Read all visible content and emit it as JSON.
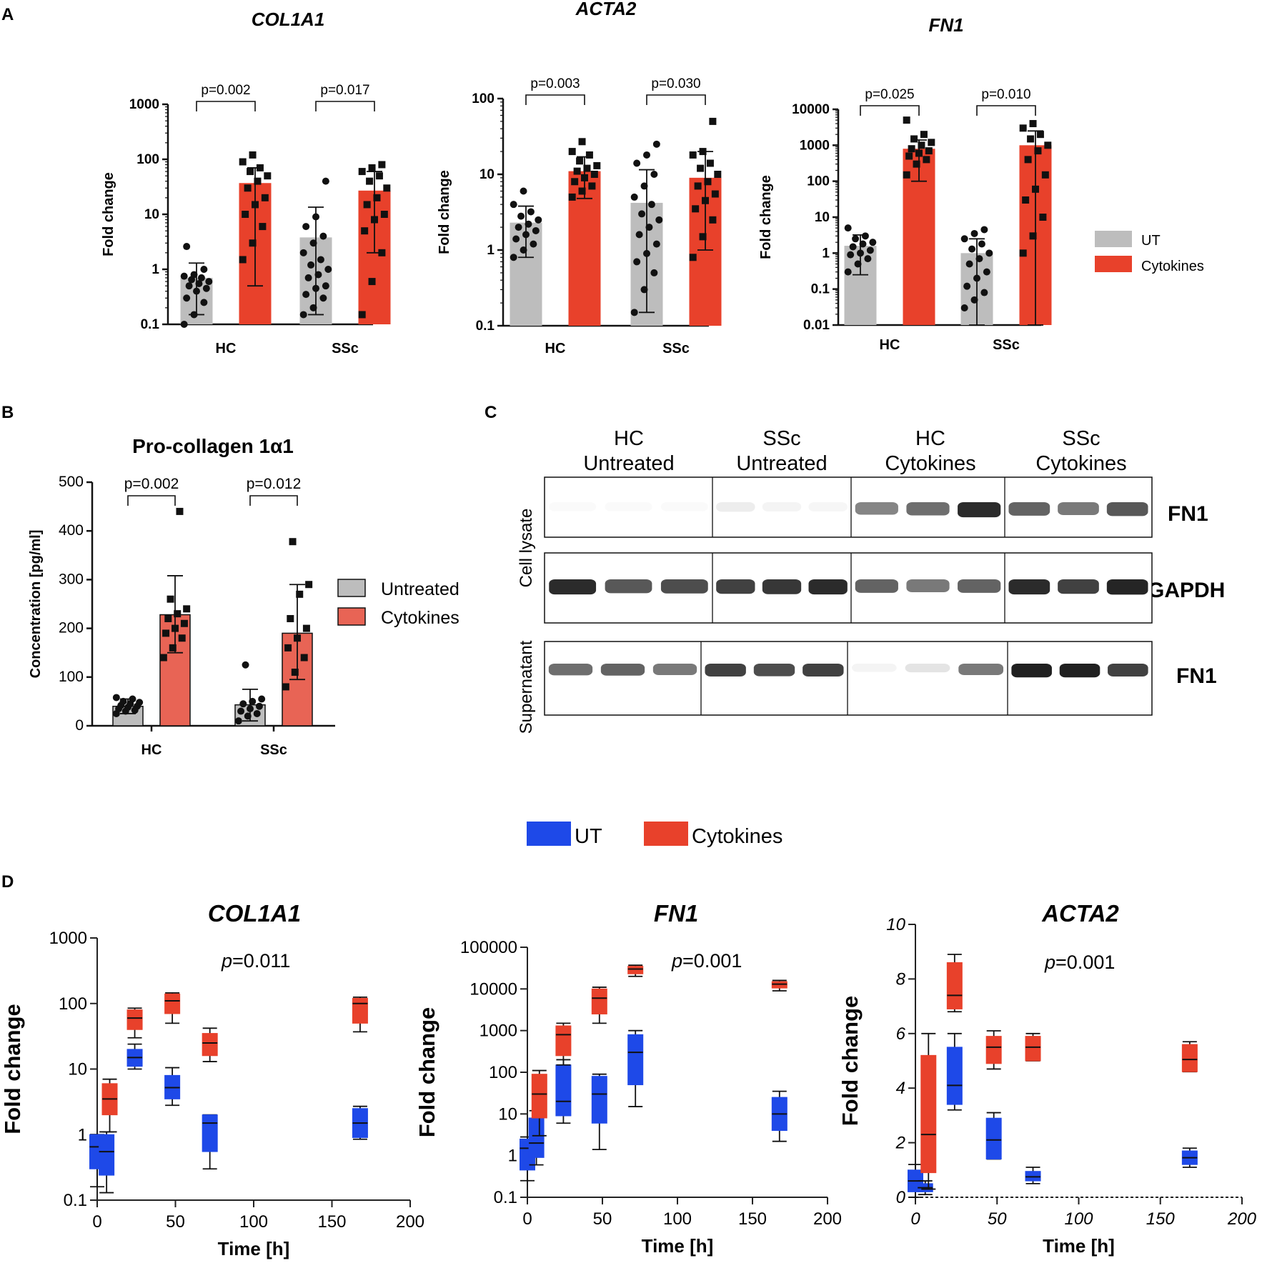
{
  "panel_letters": {
    "a": "A",
    "b": "B",
    "c": "C",
    "d": "D"
  },
  "colors": {
    "grey": "#bdbdbd",
    "red": "#e8412b",
    "lightred": "#e86455",
    "blue": "#1e49e8",
    "black": "#111111"
  },
  "icon_names": {
    "ut_bar_swatch": "legend-swatch",
    "blot_bands": "western-blot-bands"
  },
  "panel_a": {
    "legend": {
      "ut": "UT",
      "cyt": "Cytokines"
    },
    "groups": [
      "HC",
      "SSc"
    ],
    "ylabel": "Fold change"
  },
  "panel_b": {
    "legend": {
      "ut": "Untreated",
      "cyt": "Cytokines"
    }
  },
  "panel_c": {
    "lanes": [
      {
        "line1": "HC",
        "line2": "Untreated"
      },
      {
        "line1": "SSc",
        "line2": "Untreated"
      },
      {
        "line1": "HC",
        "line2": "Cytokines"
      },
      {
        "line1": "SSc",
        "line2": "Cytokines"
      }
    ],
    "row_labels": {
      "cell_lysate": "Cell lysate",
      "supernatant": "Supernatant"
    },
    "band_labels": {
      "fn1_lysate": "FN1",
      "gapdh": "GAPDH",
      "fn1_sup": "FN1"
    },
    "band_intensity": {
      "fn1_lysate": [
        0.02,
        0.02,
        0.02,
        0.08,
        0.05,
        0.04,
        0.55,
        0.65,
        0.95,
        0.7,
        0.6,
        0.75
      ],
      "gapdh": [
        0.95,
        0.75,
        0.8,
        0.85,
        0.9,
        0.95,
        0.7,
        0.6,
        0.7,
        0.95,
        0.85,
        0.98
      ],
      "fn1_sup": [
        0.65,
        0.7,
        0.6,
        0.85,
        0.8,
        0.85,
        0.05,
        0.12,
        0.6,
        1.0,
        1.0,
        0.85
      ]
    }
  },
  "panel_d": {
    "legend": {
      "ut": "UT",
      "cyt": "Cytokines"
    },
    "ylabel": "Fold change",
    "xlabel": "Time [h]",
    "p_prefix": "p"
  },
  "chart_data": [
    {
      "id": "A1",
      "type": "bar",
      "title": "COL1A1",
      "xlabel": "",
      "ylabel": "Fold change",
      "scale": "log",
      "ylim": [
        0.1,
        1000
      ],
      "yticks": [
        0.1,
        1,
        10,
        100,
        1000
      ],
      "ytick_labels": [
        "0.1",
        "1",
        "10",
        "100",
        "1000"
      ],
      "categories": [
        "HC",
        "SSc"
      ],
      "series": [
        {
          "name": "UT",
          "means": [
            0.7,
            3.8
          ],
          "err_hi": [
            1.3,
            13.5
          ],
          "err_lo": [
            0.15,
            0.15
          ],
          "points": [
            [
              0.1,
              0.15,
              0.25,
              0.3,
              0.4,
              0.45,
              0.5,
              0.55,
              0.6,
              0.65,
              0.7,
              0.75,
              0.8,
              1.0,
              2.6
            ],
            [
              0.15,
              0.2,
              0.3,
              0.35,
              0.45,
              0.5,
              0.7,
              0.8,
              1.0,
              1.2,
              1.5,
              2.0,
              3.0,
              4.0,
              6.0,
              9.0,
              40.0
            ]
          ]
        },
        {
          "name": "Cytokines",
          "means": [
            37,
            27
          ],
          "err_hi": [
            70,
            60
          ],
          "err_lo": [
            0.5,
            2.0
          ],
          "points": [
            [
              1.5,
              3.0,
              6.0,
              10.0,
              15.0,
              20.0,
              30.0,
              40.0,
              50.0,
              60.0,
              70.0,
              90.0,
              120.0
            ],
            [
              0.15,
              0.6,
              2.0,
              5.0,
              8.0,
              10.0,
              15.0,
              20.0,
              30.0,
              40.0,
              50.0,
              60.0,
              70.0,
              80.0
            ]
          ]
        }
      ],
      "pvalues": [
        "p=0.002",
        "p=0.017"
      ]
    },
    {
      "id": "A2",
      "type": "bar",
      "title": "ACTA2",
      "xlabel": "",
      "ylabel": "Fold change",
      "scale": "log",
      "ylim": [
        0.1,
        100
      ],
      "yticks": [
        0.1,
        1,
        10,
        100
      ],
      "ytick_labels": [
        "0.1",
        "1",
        "10",
        "100"
      ],
      "categories": [
        "HC",
        "SSc"
      ],
      "series": [
        {
          "name": "UT",
          "means": [
            2.3,
            4.2
          ],
          "err_hi": [
            3.8,
            11.5
          ],
          "err_lo": [
            0.8,
            0.15
          ],
          "points": [
            [
              0.8,
              1.0,
              1.2,
              1.4,
              1.6,
              1.8,
              2.0,
              2.2,
              2.5,
              2.8,
              3.2,
              4.0,
              6.0
            ],
            [
              0.15,
              0.3,
              0.5,
              0.7,
              0.9,
              1.2,
              1.6,
              2.0,
              2.5,
              3.0,
              4.0,
              5.0,
              7.0,
              10.0,
              14.0,
              18.0,
              25.0
            ]
          ]
        },
        {
          "name": "Cytokines",
          "means": [
            11,
            9
          ],
          "err_hi": [
            17,
            20
          ],
          "err_lo": [
            4.8,
            1.0
          ],
          "points": [
            [
              5.0,
              6.0,
              7.0,
              8.0,
              9.0,
              10.0,
              11.0,
              12.0,
              13.0,
              15.0,
              18.0,
              20.0,
              27.0
            ],
            [
              0.8,
              1.5,
              2.5,
              3.5,
              4.5,
              5.5,
              7.0,
              8.0,
              10.0,
              12.0,
              14.0,
              18.0,
              20.0,
              50.0
            ]
          ]
        }
      ],
      "pvalues": [
        "p=0.003",
        "p=0.030"
      ]
    },
    {
      "id": "A3",
      "type": "bar",
      "title": "FN1",
      "xlabel": "",
      "ylabel": "Fold change",
      "scale": "log",
      "ylim": [
        0.01,
        10000
      ],
      "yticks": [
        0.01,
        0.1,
        1,
        10,
        100,
        1000,
        10000
      ],
      "ytick_labels": [
        "0.01",
        "0.1",
        "1",
        "10",
        "100",
        "1000",
        "10000"
      ],
      "categories": [
        "HC",
        "SSc"
      ],
      "series": [
        {
          "name": "UT",
          "means": [
            1.6,
            1.0
          ],
          "err_hi": [
            3.2,
            2.5
          ],
          "err_lo": [
            0.25,
            0.01
          ],
          "points": [
            [
              0.3,
              0.5,
              0.7,
              0.9,
              1.0,
              1.2,
              1.5,
              1.8,
              2.0,
              2.5,
              3.0,
              5.0
            ],
            [
              0.03,
              0.05,
              0.08,
              0.12,
              0.2,
              0.3,
              0.5,
              0.7,
              1.0,
              1.3,
              1.8,
              2.5,
              3.5,
              4.5
            ]
          ]
        },
        {
          "name": "Cytokines",
          "means": [
            800,
            1000
          ],
          "err_hi": [
            1400,
            2500
          ],
          "err_lo": [
            100,
            0.01
          ],
          "points": [
            [
              150,
              300,
              400,
              500,
              600,
              700,
              800,
              1000,
              1200,
              1500,
              2000,
              5000
            ],
            [
              1.0,
              3.0,
              10.0,
              30.0,
              60.0,
              150.0,
              400.0,
              700.0,
              1000.0,
              1500.0,
              2000.0,
              3000.0,
              4000.0
            ]
          ]
        }
      ],
      "pvalues": [
        "p=0.025",
        "p=0.010"
      ]
    },
    {
      "id": "B",
      "type": "bar",
      "title": "Pro-collagen 1α1",
      "xlabel": "",
      "ylabel": "Concentration [pg/ml]",
      "scale": "linear",
      "ylim": [
        0,
        500
      ],
      "yticks": [
        0,
        100,
        200,
        300,
        400,
        500
      ],
      "ytick_labels": [
        "0",
        "100",
        "200",
        "300",
        "400",
        "500"
      ],
      "categories": [
        "HC",
        "SSc"
      ],
      "series": [
        {
          "name": "Untreated",
          "means": [
            40,
            43
          ],
          "err_hi": [
            55,
            75
          ],
          "err_lo": [
            25,
            10
          ],
          "points": [
            [
              25,
              30,
              32,
              35,
              38,
              40,
              42,
              45,
              48,
              50,
              55,
              58
            ],
            [
              10,
              20,
              25,
              30,
              35,
              40,
              45,
              50,
              55,
              125
            ]
          ]
        },
        {
          "name": "Cytokines",
          "means": [
            228,
            190
          ],
          "err_hi": [
            308,
            290
          ],
          "err_lo": [
            150,
            95
          ],
          "points": [
            [
              140,
              160,
              180,
              190,
              200,
              210,
              220,
              230,
              240,
              260,
              440
            ],
            [
              80,
              110,
              140,
              160,
              180,
              200,
              220,
              270,
              290,
              378
            ]
          ]
        }
      ],
      "pvalues": [
        "p=0.002",
        "p=0.012"
      ]
    },
    {
      "id": "D1",
      "type": "box",
      "title": "COL1A1",
      "xlabel": "Time [h]",
      "ylabel": "Fold change",
      "scale": "log",
      "ylim": [
        0.1,
        1000
      ],
      "yticks": [
        0.1,
        1,
        10,
        100,
        1000
      ],
      "ytick_labels": [
        "0.1",
        "1",
        "10",
        "100",
        "1000"
      ],
      "xlim": [
        0,
        200
      ],
      "xticks": [
        0,
        50,
        100,
        150,
        200
      ],
      "xtick_labels": [
        "0",
        "50",
        "100",
        "150",
        "200"
      ],
      "p_value": "=0.011",
      "series": [
        {
          "name": "UT",
          "boxes": [
            {
              "x": 0,
              "min": 0.16,
              "q1": 0.3,
              "median": 0.65,
              "q3": 1.0,
              "max": 1.0
            },
            {
              "x": 6,
              "min": 0.13,
              "q1": 0.24,
              "median": 0.55,
              "q3": 1.0,
              "max": 1.1
            },
            {
              "x": 24,
              "min": 10,
              "q1": 11,
              "median": 15,
              "q3": 20,
              "max": 24
            },
            {
              "x": 48,
              "min": 2.8,
              "q1": 3.5,
              "median": 5.2,
              "q3": 8.0,
              "max": 10.5
            },
            {
              "x": 72,
              "min": 0.3,
              "q1": 0.55,
              "median": 1.5,
              "q3": 2.0,
              "max": 2.0
            },
            {
              "x": 168,
              "min": 0.85,
              "q1": 0.9,
              "median": 1.5,
              "q3": 2.5,
              "max": 2.7
            }
          ]
        },
        {
          "name": "Cytokines",
          "boxes": [
            {
              "x": 8,
              "min": 1.1,
              "q1": 2.0,
              "median": 3.5,
              "q3": 6.0,
              "max": 7.0
            },
            {
              "x": 24,
              "min": 30,
              "q1": 40,
              "median": 60,
              "q3": 80,
              "max": 85
            },
            {
              "x": 48,
              "min": 50,
              "q1": 70,
              "median": 110,
              "q3": 140,
              "max": 145
            },
            {
              "x": 72,
              "min": 13,
              "q1": 16,
              "median": 25,
              "q3": 35,
              "max": 42
            },
            {
              "x": 168,
              "min": 37,
              "q1": 50,
              "median": 100,
              "q3": 120,
              "max": 125
            }
          ]
        }
      ]
    },
    {
      "id": "D2",
      "type": "box",
      "title": "FN1",
      "xlabel": "Time [h]",
      "ylabel": "Fold change",
      "scale": "log",
      "ylim": [
        0.1,
        100000
      ],
      "yticks": [
        0.1,
        1,
        10,
        100,
        1000,
        10000,
        100000
      ],
      "ytick_labels": [
        "0.1",
        "1",
        "10",
        "100",
        "1000",
        "10000",
        "100000"
      ],
      "xlim": [
        0,
        200
      ],
      "xticks": [
        0,
        50,
        100,
        150,
        200
      ],
      "xtick_labels": [
        "0",
        "50",
        "100",
        "150",
        "200"
      ],
      "p_value": "=0.001",
      "series": [
        {
          "name": "UT",
          "boxes": [
            {
              "x": 0,
              "min": 0.25,
              "q1": 0.45,
              "median": 1.5,
              "q3": 2.5,
              "max": 2.8
            },
            {
              "x": 6,
              "min": 0.6,
              "q1": 0.9,
              "median": 2.0,
              "q3": 8.0,
              "max": 12.0
            },
            {
              "x": 24,
              "min": 6.0,
              "q1": 9.0,
              "median": 20.0,
              "q3": 150.0,
              "max": 200.0
            },
            {
              "x": 48,
              "min": 1.4,
              "q1": 6.0,
              "median": 30.0,
              "q3": 80.0,
              "max": 90.0
            },
            {
              "x": 72,
              "min": 15.0,
              "q1": 50.0,
              "median": 300.0,
              "q3": 800.0,
              "max": 1000.0
            },
            {
              "x": 168,
              "min": 2.2,
              "q1": 4.0,
              "median": 10.0,
              "q3": 25.0,
              "max": 35.0
            }
          ]
        },
        {
          "name": "Cytokines",
          "boxes": [
            {
              "x": 8,
              "min": 3.0,
              "q1": 8.0,
              "median": 30.0,
              "q3": 90.0,
              "max": 110.0
            },
            {
              "x": 24,
              "min": 150.0,
              "q1": 250.0,
              "median": 800.0,
              "q3": 1300.0,
              "max": 1500.0
            },
            {
              "x": 48,
              "min": 1500.0,
              "q1": 2500.0,
              "median": 6000.0,
              "q3": 10000.0,
              "max": 11000.0
            },
            {
              "x": 72,
              "min": 20000.0,
              "q1": 23000.0,
              "median": 30000.0,
              "q3": 35000.0,
              "max": 37000.0
            },
            {
              "x": 168,
              "min": 9000.0,
              "q1": 10500.0,
              "median": 13000.0,
              "q3": 15000.0,
              "max": 16000.0
            }
          ]
        }
      ]
    },
    {
      "id": "D3",
      "type": "box",
      "title": "ACTA2",
      "xlabel": "Time [h]",
      "ylabel": "Fold change",
      "scale": "linear",
      "ylim": [
        0,
        10
      ],
      "yticks": [
        0,
        2,
        4,
        6,
        8,
        10
      ],
      "ytick_labels": [
        "0",
        "2",
        "4",
        "6",
        "8",
        "10"
      ],
      "xlim": [
        0,
        200
      ],
      "xticks": [
        0,
        50,
        100,
        150,
        200
      ],
      "xtick_labels": [
        "0",
        "50",
        "100",
        "150",
        "200"
      ],
      "p_value": "=0.001",
      "series": [
        {
          "name": "UT",
          "boxes": [
            {
              "x": 0,
              "min": 0.0,
              "q1": 0.2,
              "median": 0.6,
              "q3": 1.0,
              "max": 1.2
            },
            {
              "x": 6,
              "min": 0.1,
              "q1": 0.2,
              "median": 0.35,
              "q3": 0.5,
              "max": 0.6
            },
            {
              "x": 24,
              "min": 3.2,
              "q1": 3.4,
              "median": 4.1,
              "q3": 5.5,
              "max": 6.0
            },
            {
              "x": 48,
              "min": 1.4,
              "q1": 1.4,
              "median": 2.1,
              "q3": 2.9,
              "max": 3.1
            },
            {
              "x": 72,
              "min": 0.5,
              "q1": 0.6,
              "median": 0.75,
              "q3": 0.95,
              "max": 1.1
            },
            {
              "x": 168,
              "min": 1.1,
              "q1": 1.2,
              "median": 1.45,
              "q3": 1.7,
              "max": 1.8
            }
          ]
        },
        {
          "name": "Cytokines",
          "boxes": [
            {
              "x": 8,
              "min": 0.3,
              "q1": 0.9,
              "median": 2.3,
              "q3": 5.2,
              "max": 6.0
            },
            {
              "x": 24,
              "min": 6.8,
              "q1": 6.9,
              "median": 7.4,
              "q3": 8.6,
              "max": 8.9
            },
            {
              "x": 48,
              "min": 4.7,
              "q1": 4.9,
              "median": 5.5,
              "q3": 5.9,
              "max": 6.1
            },
            {
              "x": 72,
              "min": 5.0,
              "q1": 5.0,
              "median": 5.5,
              "q3": 5.9,
              "max": 6.0
            },
            {
              "x": 168,
              "min": 4.6,
              "q1": 4.6,
              "median": 5.05,
              "q3": 5.6,
              "max": 5.7
            }
          ]
        }
      ]
    }
  ]
}
